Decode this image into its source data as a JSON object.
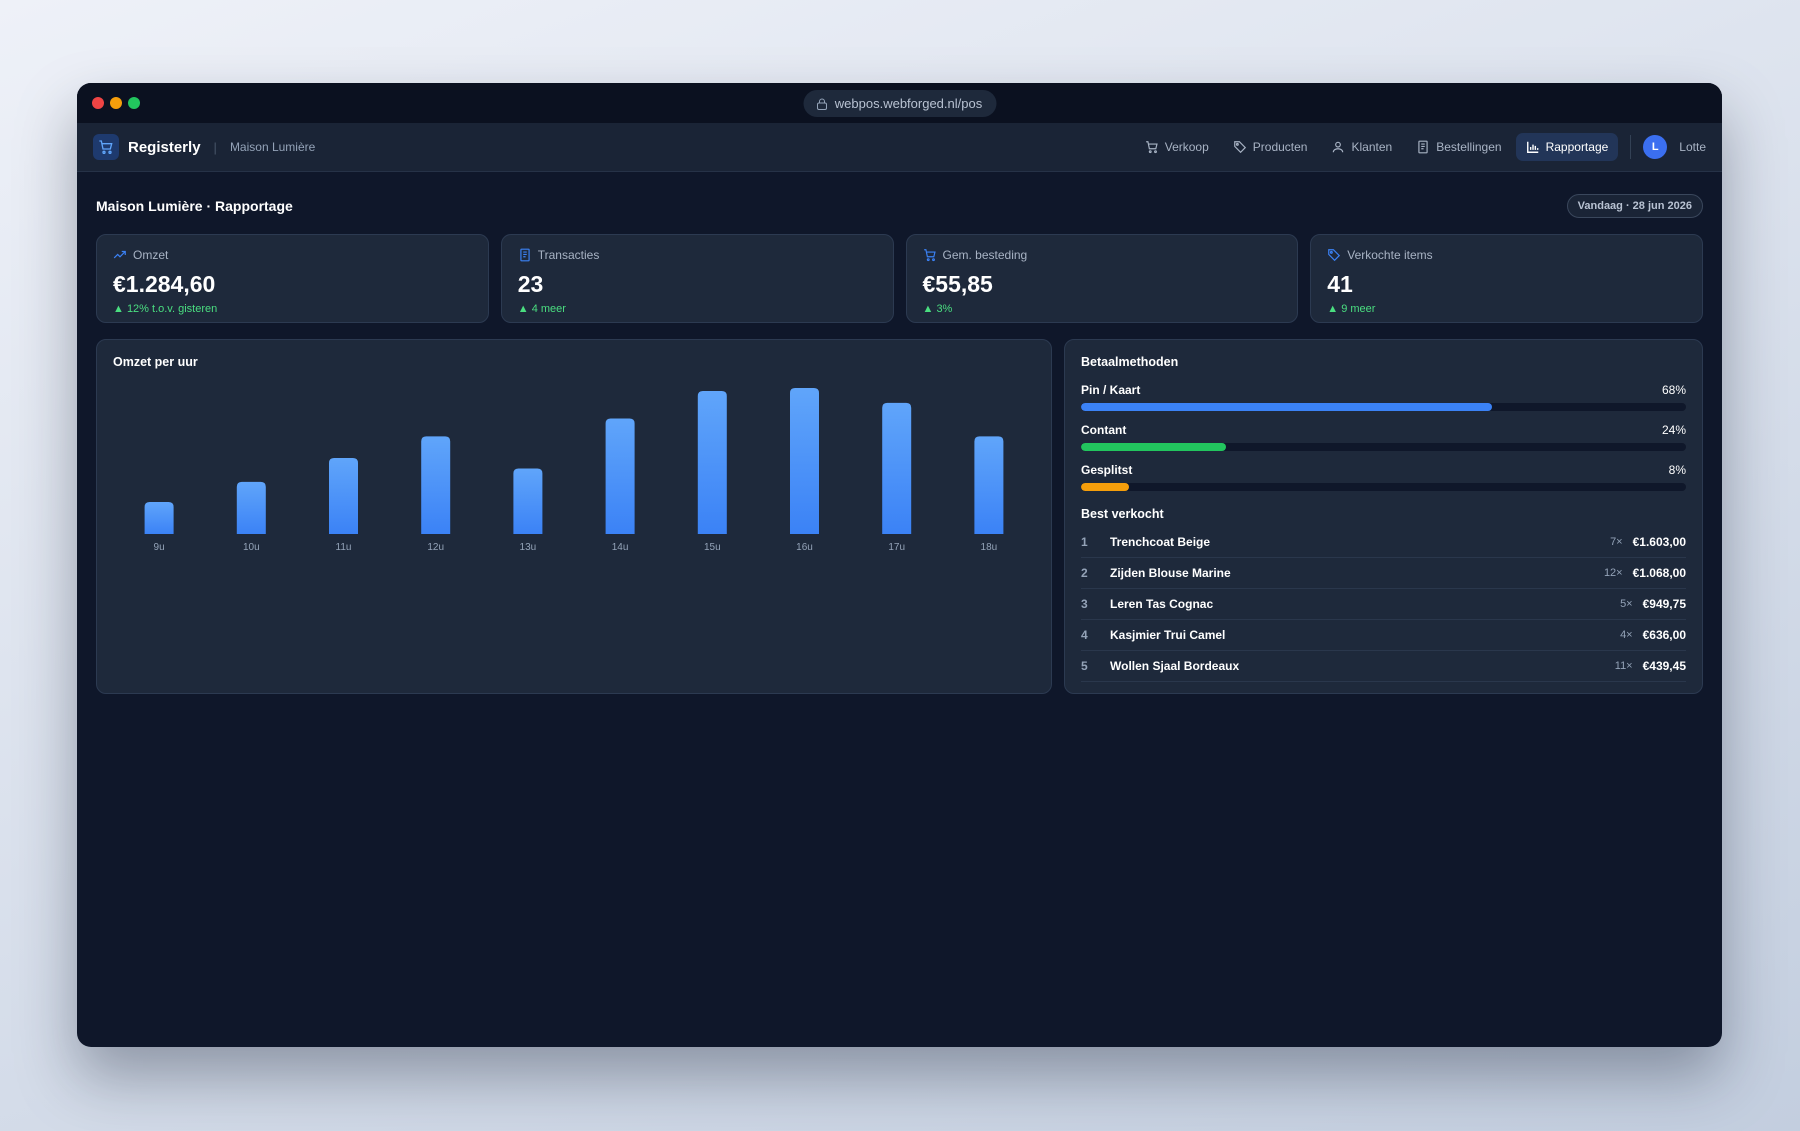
{
  "browser": {
    "url": "webpos.webforged.nl/pos"
  },
  "nav": {
    "brand": "Registerly",
    "store": "Maison Lumière",
    "items": [
      "Verkoop",
      "Producten",
      "Klanten",
      "Bestellingen",
      "Rapportage"
    ],
    "user_initial": "L",
    "user": "Lotte"
  },
  "page": {
    "title": "Maison Lumière · Rapportage",
    "date": "Vandaag · 28 jun 2026"
  },
  "kpis": [
    {
      "label": "Omzet",
      "value": "€1.284,60",
      "delta": "▲ 12% t.o.v. gisteren"
    },
    {
      "label": "Transacties",
      "value": "23",
      "delta": "▲ 4 meer"
    },
    {
      "label": "Gem. besteding",
      "value": "€55,85",
      "delta": "▲ 3%"
    },
    {
      "label": "Verkochte items",
      "value": "41",
      "delta": "▲ 9 meer"
    }
  ],
  "chart_data": [
    {
      "type": "bar",
      "title": "Omzet per uur",
      "color": "#3b82f6",
      "categories": [
        "9u",
        "10u",
        "11u",
        "12u",
        "13u",
        "14u",
        "15u",
        "16u",
        "17u",
        "18u"
      ],
      "values": [
        43,
        70,
        102,
        131,
        88,
        155,
        192,
        196,
        176,
        131
      ]
    },
    {
      "type": "hbar",
      "title": "Betaalmethoden",
      "categories": [
        "Pin / Kaart",
        "Contant",
        "Gesplitst"
      ],
      "values": [
        68,
        24,
        8
      ],
      "value_labels": [
        "68%",
        "24%",
        "8%"
      ],
      "colors": [
        "#3b82f6",
        "#22c55e",
        "#f59e0b"
      ]
    }
  ],
  "top_sellers": {
    "title": "Best verkocht",
    "rows": [
      [
        "1",
        "Trenchcoat Beige",
        "7×",
        "€1.603,00"
      ],
      [
        "2",
        "Zijden Blouse Marine",
        "12×",
        "€1.068,00"
      ],
      [
        "3",
        "Leren Tas Cognac",
        "5×",
        "€949,75"
      ],
      [
        "4",
        "Kasjmier Trui Camel",
        "4×",
        "€636,00"
      ],
      [
        "5",
        "Wollen Sjaal Bordeaux",
        "11×",
        "€439,45"
      ]
    ]
  }
}
